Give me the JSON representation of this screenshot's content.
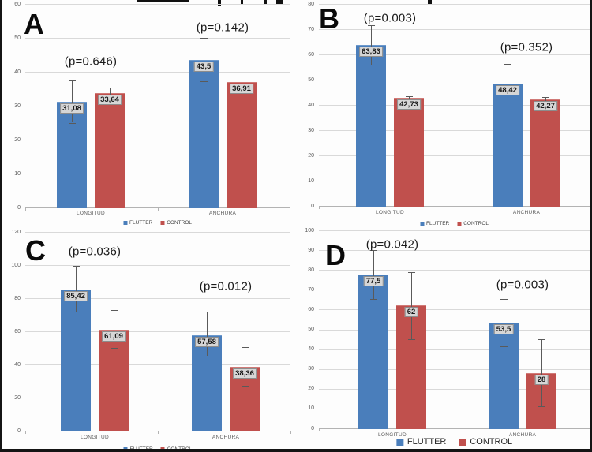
{
  "figure": {
    "colors": {
      "flutter": "#4a7ebb",
      "control": "#c0504d",
      "error_bar": "#5a5a5a",
      "gridline": "#d9d9d9"
    },
    "legend_labels": [
      "FLUTTER",
      "CONTROL"
    ]
  },
  "chart_data": [
    {
      "type": "bar",
      "panel": "A",
      "categories": [
        "LONGITUD",
        "ANCHURA"
      ],
      "series": [
        {
          "name": "FLUTTER",
          "values": [
            31.08,
            43.5
          ],
          "labels": [
            "31,08",
            "43,5"
          ],
          "error_low": [
            25.0,
            37.3
          ],
          "error_high": [
            37.4,
            49.9
          ]
        },
        {
          "name": "CONTROL",
          "values": [
            33.64,
            36.91
          ],
          "labels": [
            "33,64",
            "36,91"
          ],
          "error_low": [
            32.0,
            35.2
          ],
          "error_high": [
            35.4,
            38.6
          ]
        }
      ],
      "p_values": [
        {
          "text": "(p=0.646)",
          "category": "LONGITUD",
          "y": 43
        },
        {
          "text": "(p=0.142)",
          "category": "ANCHURA",
          "y": 53
        }
      ],
      "ylim": [
        0,
        60
      ],
      "yticks": [
        0,
        10,
        20,
        30,
        40,
        50,
        60
      ],
      "grid": true,
      "legend": [
        "FLUTTER",
        "CONTROL"
      ],
      "legend_position": "bottom"
    },
    {
      "type": "bar",
      "panel": "B",
      "categories": [
        "LONGITUD",
        "ANCHURA"
      ],
      "series": [
        {
          "name": "FLUTTER",
          "values": [
            63.83,
            48.42
          ],
          "labels": [
            "63,83",
            "48,42"
          ],
          "error_low": [
            56.0,
            40.8
          ],
          "error_high": [
            71.5,
            56.1
          ]
        },
        {
          "name": "CONTROL",
          "values": [
            42.73,
            42.27
          ],
          "labels": [
            "42,73",
            "42,27"
          ],
          "error_low": [
            42.0,
            41.6
          ],
          "error_high": [
            43.4,
            43.0
          ]
        }
      ],
      "p_values": [
        {
          "text": "(p=0.003)",
          "category": "LONGITUD",
          "y": 74.4
        },
        {
          "text": "(p=0.352)",
          "category": "ANCHURA",
          "y": 62.8
        }
      ],
      "ylim": [
        0,
        80
      ],
      "yticks": [
        0,
        10,
        20,
        30,
        40,
        50,
        60,
        70,
        80
      ],
      "grid": true,
      "legend": [
        "FLUTTER",
        "CONTROL"
      ],
      "legend_position": "bottom"
    },
    {
      "type": "bar",
      "panel": "C",
      "categories": [
        "LONGITUD",
        "ANCHURA"
      ],
      "series": [
        {
          "name": "FLUTTER",
          "values": [
            85.42,
            57.58
          ],
          "labels": [
            "85,42",
            "57,58"
          ],
          "error_low": [
            72.0,
            45.0
          ],
          "error_high": [
            99.5,
            72.0
          ]
        },
        {
          "name": "CONTROL",
          "values": [
            61.09,
            38.36
          ],
          "labels": [
            "61,09",
            "38,36"
          ],
          "error_low": [
            50.0,
            27.0
          ],
          "error_high": [
            73.0,
            50.5
          ]
        }
      ],
      "p_values": [
        {
          "text": "(p=0.036)",
          "category": "LONGITUD",
          "y": 108
        },
        {
          "text": "(p=0.012)",
          "category": "ANCHURA",
          "y": 87
        }
      ],
      "ylim": [
        0,
        120
      ],
      "yticks": [
        0,
        20,
        40,
        60,
        80,
        100,
        120
      ],
      "grid": true,
      "legend": [
        "FLUTTER",
        "CONTROL"
      ],
      "legend_position": "bottom"
    },
    {
      "type": "bar",
      "panel": "D",
      "categories": [
        "LONGITUD",
        "ANCHURA"
      ],
      "series": [
        {
          "name": "FLUTTER",
          "values": [
            77.5,
            53.5
          ],
          "labels": [
            "77,5",
            "53,5"
          ],
          "error_low": [
            65.5,
            41.5
          ],
          "error_high": [
            90.0,
            65.5
          ]
        },
        {
          "name": "CONTROL",
          "values": [
            62,
            28
          ],
          "labels": [
            "62",
            "28"
          ],
          "error_low": [
            45.0,
            11.0
          ],
          "error_high": [
            79.0,
            45.0
          ]
        }
      ],
      "p_values": [
        {
          "text": "(p=0.042)",
          "category": "LONGITUD",
          "y": 92.8
        },
        {
          "text": "(p=0.003)",
          "category": "ANCHURA",
          "y": 72.5
        }
      ],
      "ylim": [
        0,
        100
      ],
      "yticks": [
        0,
        10,
        20,
        30,
        40,
        50,
        60,
        70,
        80,
        90,
        100
      ],
      "grid": true,
      "legend": [
        "FLUTTER",
        "CONTROL"
      ],
      "legend_position": "bottom"
    }
  ]
}
